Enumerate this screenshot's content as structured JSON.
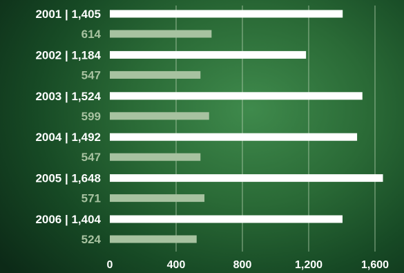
{
  "chart_data": {
    "type": "bar",
    "orientation": "horizontal",
    "categories": [
      "2001",
      "2002",
      "2003",
      "2004",
      "2005",
      "2006"
    ],
    "series": [
      {
        "values": [
          1405,
          1184,
          1524,
          1492,
          1648,
          1404
        ]
      },
      {
        "values": [
          614,
          547,
          599,
          547,
          571,
          524
        ]
      }
    ],
    "row_labels": [
      {
        "total": "2001 | 1,405",
        "sub": "614"
      },
      {
        "total": "2002 | 1,184",
        "sub": "547"
      },
      {
        "total": "2003 | 1,524",
        "sub": "599"
      },
      {
        "total": "2004 | 1,492",
        "sub": "547"
      },
      {
        "total": "2005 | 1,648",
        "sub": "571"
      },
      {
        "total": "2006 | 1,404",
        "sub": "524"
      }
    ],
    "xticks": [
      0,
      400,
      800,
      1200,
      1600
    ],
    "xtick_labels": [
      "0",
      "400",
      "800",
      "1,200",
      "1,600"
    ],
    "xlim": [
      0,
      1700
    ],
    "grid": true,
    "colors": {
      "total": "#ffffff",
      "sub": "#a7c2a0",
      "grid": "#b9d3b4"
    }
  }
}
